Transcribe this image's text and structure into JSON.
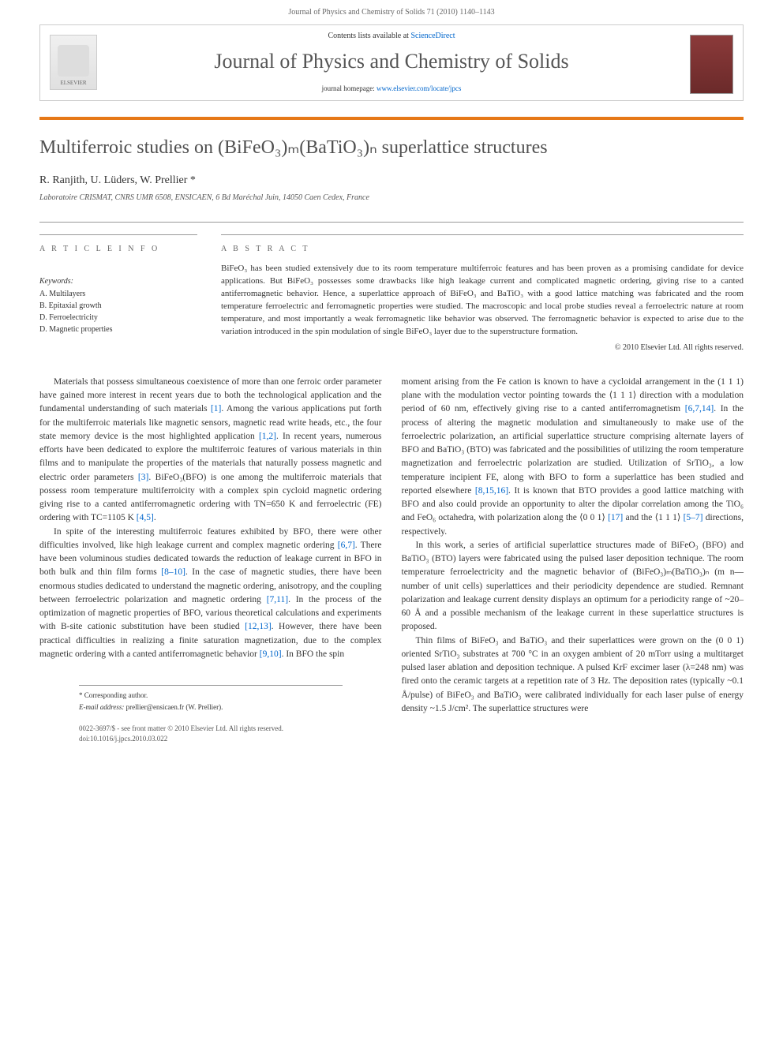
{
  "header": {
    "citation": "Journal of Physics and Chemistry of Solids 71 (2010) 1140–1143",
    "contents_prefix": "Contents lists available at ",
    "sciencedirect": "ScienceDirect",
    "journal_name": "Journal of Physics and Chemistry of Solids",
    "homepage_prefix": "journal homepage: ",
    "homepage_url": "www.elsevier.com/locate/jpcs",
    "publisher_name": "ELSEVIER"
  },
  "article": {
    "title_html": "Multiferroic studies on (BiFeO₃)ₘ(BaTiO₃)ₙ superlattice structures",
    "authors": "R. Ranjith, U. Lüders, W. Prellier *",
    "affiliation": "Laboratoire CRISMAT, CNRS UMR 6508, ENSICAEN, 6 Bd Maréchal Juin, 14050 Caen Cedex, France"
  },
  "info": {
    "heading": "A R T I C L E  I N F O",
    "keywords_label": "Keywords:",
    "keywords": [
      "A. Multilayers",
      "B. Epitaxial growth",
      "D. Ferroelectricity",
      "D. Magnetic properties"
    ]
  },
  "abstract": {
    "heading": "A B S T R A C T",
    "text": "BiFeO₃ has been studied extensively due to its room temperature multiferroic features and has been proven as a promising candidate for device applications. But BiFeO₃ possesses some drawbacks like high leakage current and complicated magnetic ordering, giving rise to a canted antiferromagnetic behavior. Hence, a superlattice approach of BiFeO₃ and BaTiO₃ with a good lattice matching was fabricated and the room temperature ferroelectric and ferromagnetic properties were studied. The macroscopic and local probe studies reveal a ferroelectric nature at room temperature, and most importantly a weak ferromagnetic like behavior was observed. The ferromagnetic behavior is expected to arise due to the variation introduced in the spin modulation of single BiFeO₃ layer due to the superstructure formation.",
    "copyright": "© 2010 Elsevier Ltd. All rights reserved."
  },
  "body": {
    "col1": {
      "p1": "Materials that possess simultaneous coexistence of more than one ferroic order parameter have gained more interest in recent years due to both the technological application and the fundamental understanding of such materials [1]. Among the various applications put forth for the multiferroic materials like magnetic sensors, magnetic read write heads, etc., the four state memory device is the most highlighted application [1,2]. In recent years, numerous efforts have been dedicated to explore the multiferroic features of various materials in thin films and to manipulate the properties of the materials that naturally possess magnetic and electric order parameters [3]. BiFeO₃(BFO) is one among the multiferroic materials that possess room temperature multiferroicity with a complex spin cycloid magnetic ordering giving rise to a canted antiferromagnetic ordering with TN=650 K and ferroelectric (FE) ordering with TC=1105 K [4,5].",
      "p2": "In spite of the interesting multiferroic features exhibited by BFO, there were other difficulties involved, like high leakage current and complex magnetic ordering [6,7]. There have been voluminous studies dedicated towards the reduction of leakage current in BFO in both bulk and thin film forms [8–10]. In the case of magnetic studies, there have been enormous studies dedicated to understand the magnetic ordering, anisotropy, and the coupling between ferroelectric polarization and magnetic ordering [7,11]. In the process of the optimization of magnetic properties of BFO, various theoretical calculations and experiments with B-site cationic substitution have been studied [12,13]. However, there have been practical difficulties in realizing a finite saturation magnetization, due to the complex magnetic ordering with a canted antiferromagnetic behavior [9,10]. In BFO the spin"
    },
    "col2": {
      "p1": "moment arising from the Fe cation is known to have a cycloidal arrangement in the (1 1 1) plane with the modulation vector pointing towards the ⟨1 1 1⟩ direction with a modulation period of 60 nm, effectively giving rise to a canted antiferromagnetism [6,7,14]. In the process of altering the magnetic modulation and simultaneously to make use of the ferroelectric polarization, an artificial superlattice structure comprising alternate layers of BFO and BaTiO₃ (BTO) was fabricated and the possibilities of utilizing the room temperature magnetization and ferroelectric polarization are studied. Utilization of SrTiO₃, a low temperature incipient FE, along with BFO to form a superlattice has been studied and reported elsewhere [8,15,16]. It is known that BTO provides a good lattice matching with BFO and also could provide an opportunity to alter the dipolar correlation among the TiO₆ and FeO₆ octahedra, with polarization along the ⟨0 0 1⟩ [17] and the ⟨1 1 1⟩ [5–7] directions, respectively.",
      "p2": "In this work, a series of artificial superlattice structures made of BiFeO₃ (BFO) and BaTiO₃ (BTO) layers were fabricated using the pulsed laser deposition technique. The room temperature ferroelectricity and the magnetic behavior of (BiFeO₃)ₘ(BaTiO₃)ₙ (m n—number of unit cells) superlattices and their periodicity dependence are studied. Remnant polarization and leakage current density displays an optimum for a periodicity range of ~20–60 Å and a possible mechanism of the leakage current in these superlattice structures is proposed.",
      "p3": "Thin films of BiFeO₃ and BaTiO₃ and their superlattices were grown on the (0 0 1) oriented SrTiO₃ substrates at 700 °C in an oxygen ambient of 20 mTorr using a multitarget pulsed laser ablation and deposition technique. A pulsed KrF excimer laser (λ=248 nm) was fired onto the ceramic targets at a repetition rate of 3 Hz. The deposition rates (typically ~0.1 Å/pulse) of BiFeO₃ and BaTiO₃ were calibrated individually for each laser pulse of energy density ~1.5 J/cm². The superlattice structures were"
    }
  },
  "footnotes": {
    "corresponding": "* Corresponding author.",
    "email_label": "E-mail address: ",
    "email": "prellier@ensicaen.fr",
    "email_name": " (W. Prellier)."
  },
  "doi": {
    "line1": "0022-3697/$ - see front matter © 2010 Elsevier Ltd. All rights reserved.",
    "line2": "doi:10.1016/j.jpcs.2010.03.022"
  }
}
